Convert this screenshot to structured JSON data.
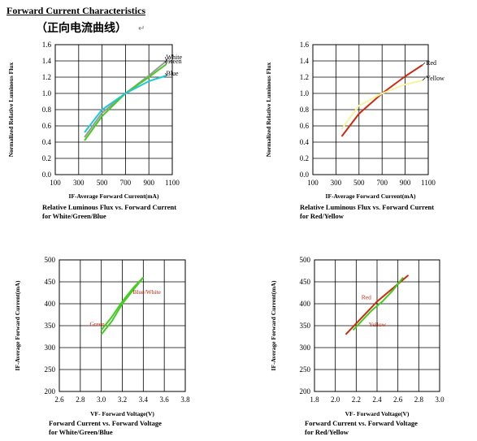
{
  "header": {
    "title": "Forward Current Characteristics",
    "subtitle": "（正向电流曲线）",
    "return_mark": "↵"
  },
  "colors": {
    "white": "#9a9a9a",
    "green": "#44cc22",
    "blue": "#22c8d8",
    "red": "#cc2a10",
    "yellow": "#f5f5a0"
  },
  "chart_data": [
    {
      "type": "line",
      "title": "",
      "caption": [
        "Relative Luminous Flux vs. Forward Current",
        "for White/Green/Blue"
      ],
      "xlabel": "IF-Average Forward Current(mA)",
      "ylabel": "Normalized Relative Luminous Flux",
      "xlim": [
        100,
        1100
      ],
      "ylim": [
        0.0,
        1.6
      ],
      "xticks": [
        "100",
        "300",
        "500",
        "700",
        "900",
        "1100"
      ],
      "yticks": [
        "0.0",
        "0.2",
        "0.4",
        "0.6",
        "0.8",
        "1.0",
        "1.2",
        "1.4",
        "1.6"
      ],
      "grid": true,
      "series": [
        {
          "name": "White",
          "color": "#9a9a9a",
          "x": [
            350,
            500,
            700,
            900,
            1050
          ],
          "y": [
            0.46,
            0.76,
            1.0,
            1.22,
            1.4
          ]
        },
        {
          "name": "Green",
          "color": "#44cc22",
          "x": [
            350,
            500,
            700,
            900,
            1050
          ],
          "y": [
            0.42,
            0.72,
            1.0,
            1.2,
            1.36
          ]
        },
        {
          "name": "Blue",
          "color": "#22c8d8",
          "x": [
            350,
            500,
            700,
            900,
            1050
          ],
          "y": [
            0.52,
            0.8,
            1.0,
            1.15,
            1.22
          ]
        }
      ]
    },
    {
      "type": "line",
      "title": "",
      "caption": [
        "Relative Luminous Flux vs. Forward Current",
        "for Red/Yellow"
      ],
      "xlabel": "IF-Average Forward Current(mA)",
      "ylabel": "Normalized Relative Luminous Flux",
      "xlim": [
        100,
        1100
      ],
      "ylim": [
        0.0,
        1.6
      ],
      "xticks": [
        "100",
        "300",
        "500",
        "700",
        "900",
        "1100"
      ],
      "yticks": [
        "0.0",
        "0.2",
        "0.4",
        "0.6",
        "0.8",
        "1.0",
        "1.2",
        "1.4",
        "1.6"
      ],
      "grid": true,
      "series": [
        {
          "name": "Red",
          "color": "#cc2a10",
          "x": [
            350,
            500,
            700,
            900,
            1050
          ],
          "y": [
            0.47,
            0.75,
            1.0,
            1.21,
            1.35
          ]
        },
        {
          "name": "Yellow",
          "color": "#f5f5a0",
          "x": [
            350,
            500,
            700,
            900,
            1050
          ],
          "y": [
            0.56,
            0.85,
            1.0,
            1.11,
            1.16
          ]
        }
      ]
    },
    {
      "type": "line",
      "title": "",
      "caption": [
        "Forward Current vs. Forward Voltage",
        "for White/Green/Blue"
      ],
      "xlabel": "VF- Forward Voltage(V)",
      "ylabel": "IF-Average Forward Current(mA)",
      "xlim": [
        2.6,
        3.8
      ],
      "ylim": [
        200,
        500
      ],
      "xticks": [
        "2.6",
        "2.8",
        "3.0",
        "3.2",
        "3.4",
        "3.6",
        "3.8"
      ],
      "yticks": [
        "200",
        "250",
        "300",
        "350",
        "400",
        "450",
        "500"
      ],
      "grid": true,
      "series": [
        {
          "name": "Green",
          "color": "#44cc22",
          "x": [
            3.0,
            3.1,
            3.2,
            3.3,
            3.4
          ],
          "y": [
            330,
            360,
            400,
            430,
            460
          ]
        },
        {
          "name": "Blue/White",
          "color": "#44cc22",
          "x": [
            3.0,
            3.1,
            3.2,
            3.3,
            3.4
          ],
          "y": [
            340,
            370,
            405,
            435,
            460
          ]
        }
      ],
      "annotations": [
        {
          "text": "Green",
          "color": "#cc2a10"
        },
        {
          "text": "Blue/White",
          "color": "#cc2a10"
        }
      ]
    },
    {
      "type": "line",
      "title": "",
      "caption": [
        "Forward Current vs. Forward Voltage",
        "for Red/Yellow"
      ],
      "xlabel": "VF- Forward Voltage(V)",
      "ylabel": "IF-Average Forward Current(mA)",
      "xlim": [
        1.8,
        3.0
      ],
      "ylim": [
        200,
        500
      ],
      "xticks": [
        "1.8",
        "2.0",
        "2.2",
        "2.4",
        "2.6",
        "2.8",
        "3.0"
      ],
      "yticks": [
        "200",
        "250",
        "300",
        "350",
        "400",
        "450",
        "500"
      ],
      "grid": true,
      "series": [
        {
          "name": "Red",
          "color": "#cc2a10",
          "x": [
            2.1,
            2.2,
            2.3,
            2.4,
            2.5,
            2.6,
            2.7
          ],
          "y": [
            330,
            355,
            380,
            405,
            425,
            445,
            465
          ]
        },
        {
          "name": "Yellow",
          "color": "#44cc22",
          "x": [
            2.17,
            2.25,
            2.35,
            2.45,
            2.55,
            2.65
          ],
          "y": [
            340,
            360,
            385,
            405,
            430,
            460
          ]
        }
      ],
      "annotations": [
        {
          "text": "Red",
          "color": "#cc2a10"
        },
        {
          "text": "Yellow",
          "color": "#cc2a10"
        }
      ]
    }
  ]
}
